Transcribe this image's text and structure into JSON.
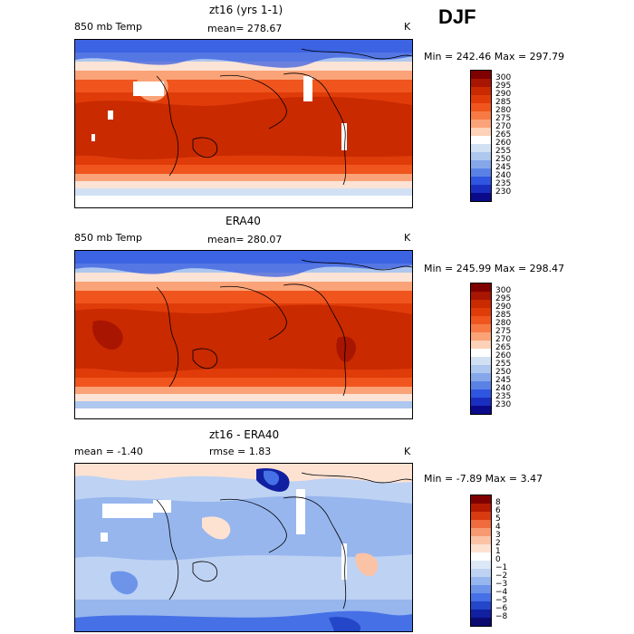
{
  "season": "DJF",
  "panels": [
    {
      "id": "model",
      "title": "zt16 (yrs 1-1)",
      "left_label": "850 mb Temp",
      "center_label": "mean= 278.67",
      "units": "K",
      "minmax": "Min = 242.46  Max = 297.79",
      "colorbar": {
        "labels": [
          "300",
          "295",
          "290",
          "285",
          "280",
          "275",
          "270",
          "265",
          "260",
          "255",
          "250",
          "245",
          "240",
          "235",
          "230"
        ],
        "colors": [
          "#7f0000",
          "#a81500",
          "#c92a00",
          "#e03c0a",
          "#f0551e",
          "#f77a45",
          "#fba378",
          "#fdd2b8",
          "#ffffff",
          "#d2e0f4",
          "#aec7ee",
          "#85a7ea",
          "#5a82e6",
          "#2f56e0",
          "#1a2fc0",
          "#0a0a8a"
        ]
      }
    },
    {
      "id": "obs",
      "title": "ERA40",
      "left_label": "850 mb Temp",
      "center_label": "mean= 280.07",
      "units": "K",
      "minmax": "Min = 245.99  Max = 298.47",
      "colorbar": {
        "labels": [
          "300",
          "295",
          "290",
          "285",
          "280",
          "275",
          "270",
          "265",
          "260",
          "255",
          "250",
          "245",
          "240",
          "235",
          "230"
        ],
        "colors": [
          "#7f0000",
          "#a81500",
          "#c92a00",
          "#e03c0a",
          "#f0551e",
          "#f77a45",
          "#fba378",
          "#fdd2b8",
          "#ffffff",
          "#d2e0f4",
          "#aec7ee",
          "#85a7ea",
          "#5a82e6",
          "#2f56e0",
          "#1a2fc0",
          "#0a0a8a"
        ]
      }
    },
    {
      "id": "diff",
      "title": "zt16 - ERA40",
      "left_label": "mean =   -1.40",
      "center_label": "rmse =    1.83",
      "units": "K",
      "minmax": "Min =  -7.89  Max =    3.47",
      "colorbar": {
        "labels": [
          "8",
          "6",
          "5",
          "4",
          "3",
          "2",
          "1",
          "0",
          "−1",
          "−2",
          "−3",
          "−4",
          "−5",
          "−6",
          "−8"
        ],
        "colors": [
          "#7f0000",
          "#b31a00",
          "#d93a10",
          "#ef6a3c",
          "#f79a72",
          "#fbc3a6",
          "#fde2d2",
          "#ffffff",
          "#dde8f7",
          "#bed2f3",
          "#97b6ee",
          "#6e94ea",
          "#4670e6",
          "#2446c8",
          "#1020a0",
          "#0a0a70"
        ]
      }
    }
  ],
  "chart_data": [
    {
      "type": "heatmap",
      "title": "zt16 (yrs 1-1)",
      "variable": "850 mb Temp",
      "units": "K",
      "mean": 278.67,
      "min": 242.46,
      "max": 297.79,
      "levels": [
        230,
        235,
        240,
        245,
        250,
        255,
        260,
        265,
        270,
        275,
        280,
        285,
        290,
        295,
        300
      ],
      "lon_range": [
        0,
        360
      ],
      "lat_range": [
        -90,
        90
      ]
    },
    {
      "type": "heatmap",
      "title": "ERA40",
      "variable": "850 mb Temp",
      "units": "K",
      "mean": 280.07,
      "min": 245.99,
      "max": 298.47,
      "levels": [
        230,
        235,
        240,
        245,
        250,
        255,
        260,
        265,
        270,
        275,
        280,
        285,
        290,
        295,
        300
      ],
      "lon_range": [
        0,
        360
      ],
      "lat_range": [
        -90,
        90
      ]
    },
    {
      "type": "heatmap",
      "title": "zt16 - ERA40",
      "units": "K",
      "mean": -1.4,
      "rmse": 1.83,
      "min": -7.89,
      "max": 3.47,
      "levels": [
        -8,
        -6,
        -5,
        -4,
        -3,
        -2,
        -1,
        0,
        1,
        2,
        3,
        4,
        5,
        6,
        8
      ],
      "lon_range": [
        0,
        360
      ],
      "lat_range": [
        -90,
        90
      ]
    }
  ]
}
